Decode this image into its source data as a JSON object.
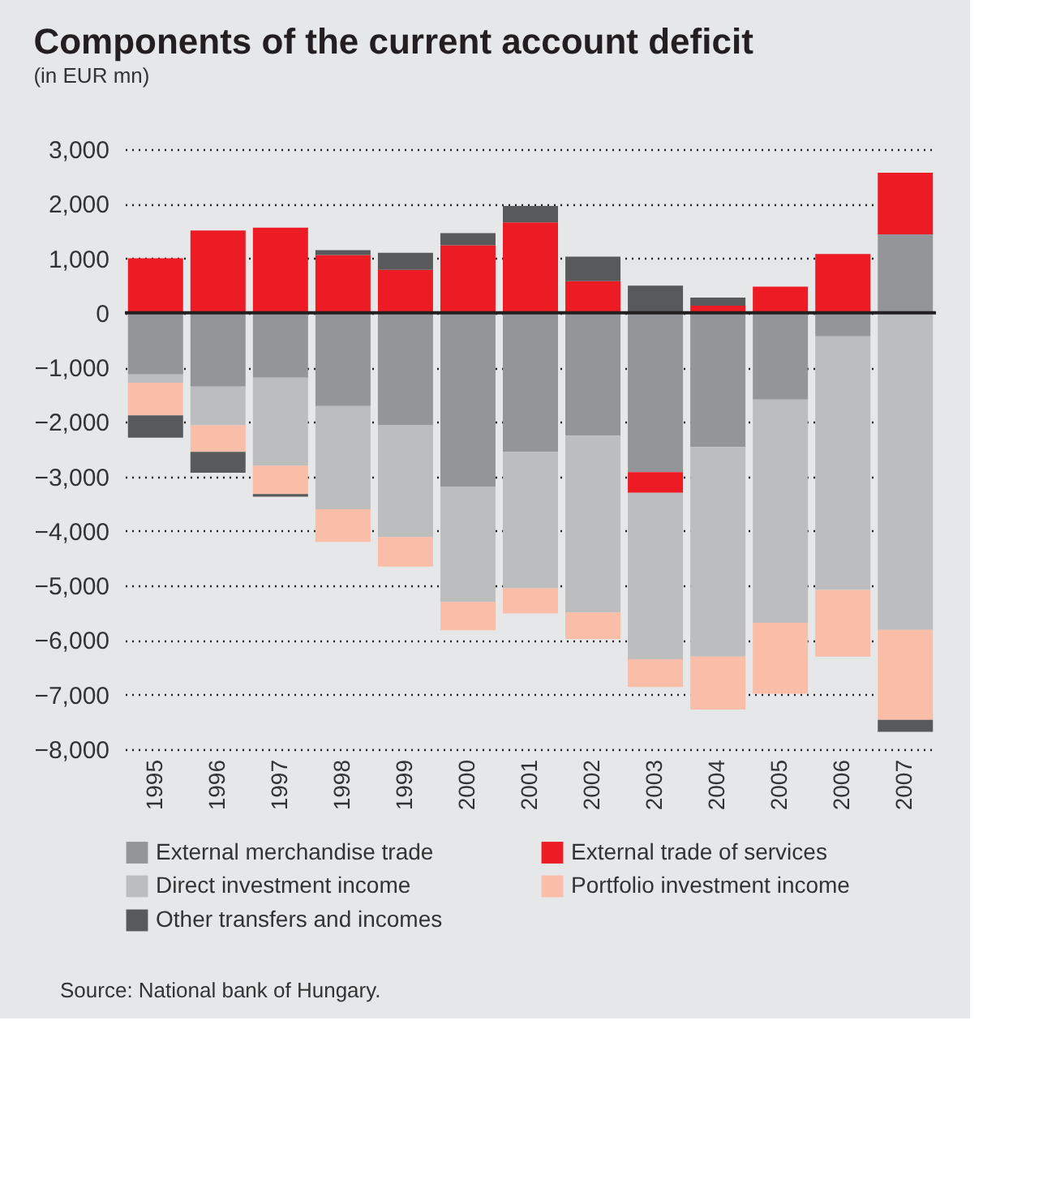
{
  "chart_data": {
    "type": "bar",
    "stacked": true,
    "title": "Components of the current account deficit",
    "subtitle": "(in EUR mn)",
    "categories": [
      "1995",
      "1996",
      "1997",
      "1998",
      "1999",
      "2000",
      "2001",
      "2002",
      "2003",
      "2004",
      "2005",
      "2006",
      "2007"
    ],
    "series": [
      {
        "name": "External merchandise trade",
        "color": "#939598",
        "values": [
          -1130,
          -1350,
          -1190,
          -1710,
          -2060,
          -3190,
          -2550,
          -2250,
          -2920,
          -2460,
          -1590,
          -430,
          1440
        ]
      },
      {
        "name": "External trade of services",
        "color": "#ed1c24",
        "values": [
          1000,
          1510,
          1560,
          1060,
          790,
          1240,
          1660,
          580,
          -380,
          130,
          480,
          1080,
          1130
        ]
      },
      {
        "name": "Direct investment income",
        "color": "#bcbdbf",
        "values": [
          -150,
          -710,
          -1610,
          -1890,
          -2050,
          -2110,
          -2500,
          -3240,
          -3050,
          -3840,
          -4090,
          -4650,
          -5810
        ]
      },
      {
        "name": "Portfolio investment income",
        "color": "#f9bda8",
        "values": [
          -600,
          -490,
          -520,
          -600,
          -540,
          -520,
          -460,
          -490,
          -510,
          -970,
          -1300,
          -1220,
          -1650
        ]
      },
      {
        "name": "Other transfers and incomes",
        "color": "#58595b",
        "values": [
          -410,
          -380,
          -50,
          90,
          310,
          220,
          300,
          450,
          500,
          150,
          null,
          null,
          -220
        ]
      }
    ],
    "ylim": [
      -8000,
      3000
    ],
    "yticks": [
      {
        "value": -8000,
        "label": "−8,000"
      },
      {
        "value": -7000,
        "label": "−7,000"
      },
      {
        "value": -6000,
        "label": "−6,000"
      },
      {
        "value": -5000,
        "label": "−5,000"
      },
      {
        "value": -4000,
        "label": "−4,000"
      },
      {
        "value": -3000,
        "label": "−3,000"
      },
      {
        "value": -2000,
        "label": "−2,000"
      },
      {
        "value": -1000,
        "label": "−1,000"
      },
      {
        "value": 0,
        "label": "0"
      },
      {
        "value": 1000,
        "label": "1,000"
      },
      {
        "value": 2000,
        "label": "2,000"
      },
      {
        "value": 3000,
        "label": "3,000"
      }
    ],
    "grid": "y",
    "legend": "bottom",
    "ref_lines": [
      {
        "axis": "y",
        "value": 0,
        "color": "#231f20",
        "line_style": "solid"
      }
    ],
    "annotations": [
      "Source: National bank of Hungary."
    ]
  }
}
